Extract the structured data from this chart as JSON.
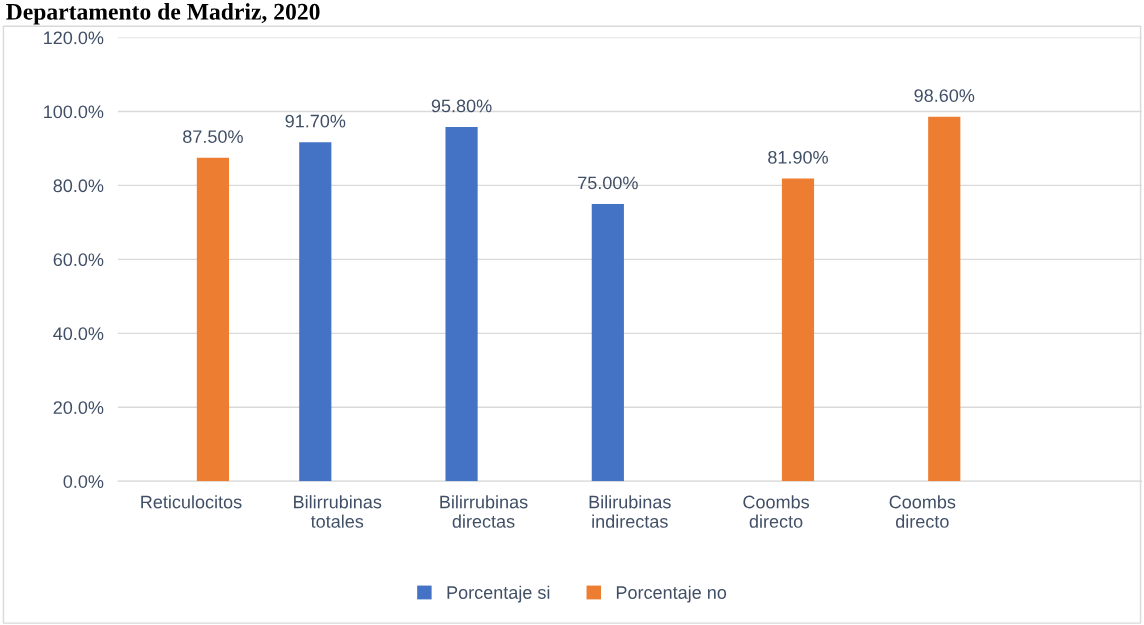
{
  "chart_data": {
    "type": "bar",
    "title": "Departamento de Madriz, 2020",
    "categories": [
      "Reticulocitos",
      "Bilirrubinas\ntotales",
      "Bilirrubinas\ndirectas",
      "Bilirubinas\nindirectas",
      "Coombs\ndirecto",
      "Coombs\ndirecto",
      null
    ],
    "series": [
      {
        "name": "Porcentaje si",
        "color": "#4472c4",
        "values": [
          null,
          91.7,
          95.8,
          75.0,
          null,
          null,
          null
        ],
        "value_labels": [
          null,
          "91.70%",
          "95.80%",
          "75.00%",
          null,
          null,
          null
        ]
      },
      {
        "name": "Porcentaje no",
        "color": "#ed7d31",
        "values": [
          87.5,
          null,
          null,
          null,
          81.9,
          98.6,
          null
        ],
        "value_labels": [
          "87.50%",
          null,
          null,
          null,
          "81.90%",
          "98.60%",
          null
        ]
      }
    ],
    "ylim": [
      0,
      120
    ],
    "yticks": [
      {
        "value": 0,
        "label": "0.0%"
      },
      {
        "value": 20,
        "label": "20.0%"
      },
      {
        "value": 40,
        "label": "40.0%"
      },
      {
        "value": 60,
        "label": "60.0%"
      },
      {
        "value": 80,
        "label": "80.0%"
      },
      {
        "value": 100,
        "label": "100.0%"
      },
      {
        "value": 120,
        "label": "120.0%"
      }
    ],
    "grid": "y",
    "legend": "bottom"
  }
}
